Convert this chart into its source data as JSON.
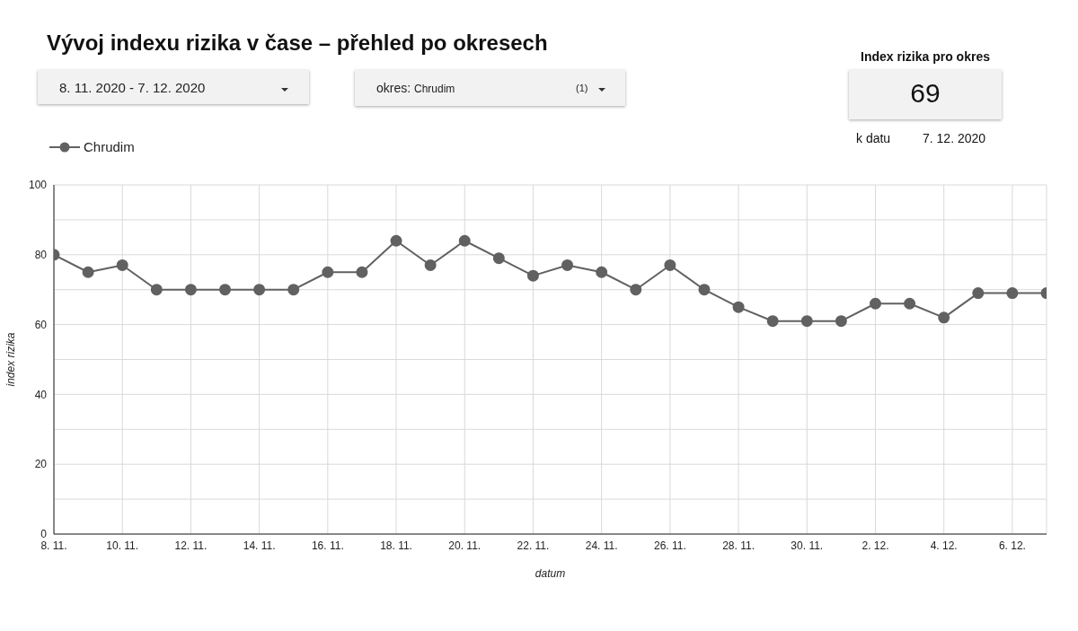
{
  "chart_data": {
    "type": "line",
    "title": "Vývoj indexu rizika v čase – přehled po okresech",
    "xlabel": "datum",
    "ylabel": "index rizika",
    "annotations": [
      "8. 11. 2020 - 7. 12. 2020",
      "okres:",
      "Chrudim",
      "(1)",
      "Index rizika pro okres",
      "69",
      "k datu",
      "7. 12. 2020"
    ],
    "x": [
      "2020-11-08",
      "2020-11-09",
      "2020-11-10",
      "2020-11-11",
      "2020-11-12",
      "2020-11-13",
      "2020-11-14",
      "2020-11-15",
      "2020-11-16",
      "2020-11-17",
      "2020-11-18",
      "2020-11-19",
      "2020-11-20",
      "2020-11-21",
      "2020-11-22",
      "2020-11-23",
      "2020-11-24",
      "2020-11-25",
      "2020-11-26",
      "2020-11-27",
      "2020-11-28",
      "2020-11-29",
      "2020-11-30",
      "2020-12-01",
      "2020-12-02",
      "2020-12-03",
      "2020-12-04",
      "2020-12-05",
      "2020-12-06",
      "2020-12-07"
    ],
    "series": [
      {
        "name": "Chrudim",
        "color": "#616161",
        "values": [
          80,
          75,
          77,
          70,
          70,
          70,
          70,
          70,
          75,
          75,
          84,
          77,
          84,
          79,
          74,
          77,
          75,
          70,
          77,
          70,
          65,
          61,
          61,
          61,
          66,
          66,
          62,
          69,
          69,
          69
        ]
      }
    ],
    "xlim": [
      "2020-11-08",
      "2020-12-07"
    ],
    "xticks": [
      {
        "value": "2020-11-08",
        "label": "8. 11."
      },
      {
        "value": "2020-11-10",
        "label": "10. 11."
      },
      {
        "value": "2020-11-12",
        "label": "12. 11."
      },
      {
        "value": "2020-11-14",
        "label": "14. 11."
      },
      {
        "value": "2020-11-16",
        "label": "16. 11."
      },
      {
        "value": "2020-11-18",
        "label": "18. 11."
      },
      {
        "value": "2020-11-20",
        "label": "20. 11."
      },
      {
        "value": "2020-11-22",
        "label": "22. 11."
      },
      {
        "value": "2020-11-24",
        "label": "24. 11."
      },
      {
        "value": "2020-11-26",
        "label": "26. 11."
      },
      {
        "value": "2020-11-28",
        "label": "28. 11."
      },
      {
        "value": "2020-11-30",
        "label": "30. 11."
      },
      {
        "value": "2020-12-02",
        "label": "2. 12."
      },
      {
        "value": "2020-12-04",
        "label": "4. 12."
      },
      {
        "value": "2020-12-06",
        "label": "6. 12."
      }
    ],
    "ylim": [
      0,
      100
    ],
    "yticks": [
      0,
      {
        "value": 10,
        "label": null
      },
      20,
      {
        "value": 30,
        "label": null
      },
      40,
      {
        "value": 50,
        "label": null
      },
      60,
      {
        "value": 70,
        "label": null
      },
      80,
      {
        "value": 90,
        "label": null
      },
      100
    ],
    "grid": true,
    "legend": "top left",
    "marker": "circle",
    "line_style": "solid"
  }
}
